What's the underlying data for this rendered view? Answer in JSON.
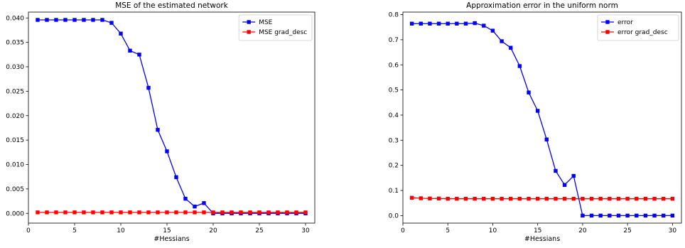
{
  "chart_data": [
    {
      "type": "line",
      "title": "MSE of the estimated network",
      "xlabel": "#Hessians",
      "ylabel": "",
      "xlim": [
        0,
        31
      ],
      "ylim": [
        -0.002,
        0.0412
      ],
      "xticks": [
        0,
        5,
        10,
        15,
        20,
        25,
        30
      ],
      "xtick_labels": [
        "0",
        "5",
        "10",
        "15",
        "20",
        "25",
        "30"
      ],
      "yticks": [
        0,
        0.005,
        0.01,
        0.015,
        0.02,
        0.025,
        0.03,
        0.035,
        0.04
      ],
      "ytick_labels": [
        "0.000",
        "0.005",
        "0.010",
        "0.015",
        "0.020",
        "0.025",
        "0.030",
        "0.035",
        "0.040"
      ],
      "legend_position": "top-right",
      "x": [
        1,
        2,
        3,
        4,
        5,
        6,
        7,
        8,
        9,
        10,
        11,
        12,
        13,
        14,
        15,
        16,
        17,
        18,
        19,
        20,
        21,
        22,
        23,
        24,
        25,
        26,
        27,
        28,
        29,
        30
      ],
      "series": [
        {
          "name": "MSE",
          "color": "#0000ff",
          "marker": "square",
          "values": [
            0.0396,
            0.0396,
            0.0396,
            0.0396,
            0.0396,
            0.0396,
            0.0396,
            0.0396,
            0.039,
            0.0368,
            0.0333,
            0.0325,
            0.0257,
            0.0171,
            0.0127,
            0.0074,
            0.003,
            0.0014,
            0.0021,
            0.0,
            0.0,
            0.0,
            0.0,
            0.0,
            0.0,
            0.0,
            0.0,
            0.0,
            0.0,
            0.0
          ]
        },
        {
          "name": "MSE grad_desc",
          "color": "#ff0000",
          "marker": "square",
          "values": [
            0.0002,
            0.0002,
            0.0002,
            0.0002,
            0.0002,
            0.0002,
            0.0002,
            0.0002,
            0.0002,
            0.0002,
            0.0002,
            0.0002,
            0.0002,
            0.0002,
            0.0002,
            0.0002,
            0.0002,
            0.0002,
            0.0002,
            0.0002,
            0.0002,
            0.0002,
            0.0002,
            0.0002,
            0.0002,
            0.0002,
            0.0002,
            0.0002,
            0.0002,
            0.0002
          ]
        }
      ]
    },
    {
      "type": "line",
      "title": "Approximation error in the uniform norm",
      "xlabel": "#Hessians",
      "ylabel": "",
      "xlim": [
        0,
        31
      ],
      "ylim": [
        -0.03,
        0.81
      ],
      "xticks": [
        0,
        5,
        10,
        15,
        20,
        25,
        30
      ],
      "xtick_labels": [
        "0",
        "5",
        "10",
        "15",
        "20",
        "25",
        "30"
      ],
      "yticks": [
        0,
        0.1,
        0.2,
        0.3,
        0.4,
        0.5,
        0.6,
        0.7,
        0.8
      ],
      "ytick_labels": [
        "0.0",
        "0.1",
        "0.2",
        "0.3",
        "0.4",
        "0.5",
        "0.6",
        "0.7",
        "0.8"
      ],
      "legend_position": "top-right",
      "x": [
        1,
        2,
        3,
        4,
        5,
        6,
        7,
        8,
        9,
        10,
        11,
        12,
        13,
        14,
        15,
        16,
        17,
        18,
        19,
        20,
        21,
        22,
        23,
        24,
        25,
        26,
        27,
        28,
        29,
        30
      ],
      "series": [
        {
          "name": "error",
          "color": "#0000ff",
          "marker": "square",
          "values": [
            0.764,
            0.764,
            0.764,
            0.764,
            0.764,
            0.764,
            0.764,
            0.766,
            0.756,
            0.736,
            0.694,
            0.668,
            0.595,
            0.49,
            0.417,
            0.303,
            0.178,
            0.122,
            0.158,
            0.0,
            0.0,
            0.0,
            0.0,
            0.0,
            0.0,
            0.0,
            0.0,
            0.0,
            0.0,
            0.0
          ]
        },
        {
          "name": "error grad_desc",
          "color": "#ff0000",
          "marker": "square",
          "values": [
            0.071,
            0.069,
            0.068,
            0.068,
            0.067,
            0.067,
            0.067,
            0.067,
            0.067,
            0.067,
            0.067,
            0.067,
            0.067,
            0.067,
            0.067,
            0.067,
            0.067,
            0.067,
            0.067,
            0.067,
            0.067,
            0.067,
            0.067,
            0.067,
            0.067,
            0.067,
            0.067,
            0.067,
            0.067,
            0.067
          ]
        }
      ]
    }
  ]
}
